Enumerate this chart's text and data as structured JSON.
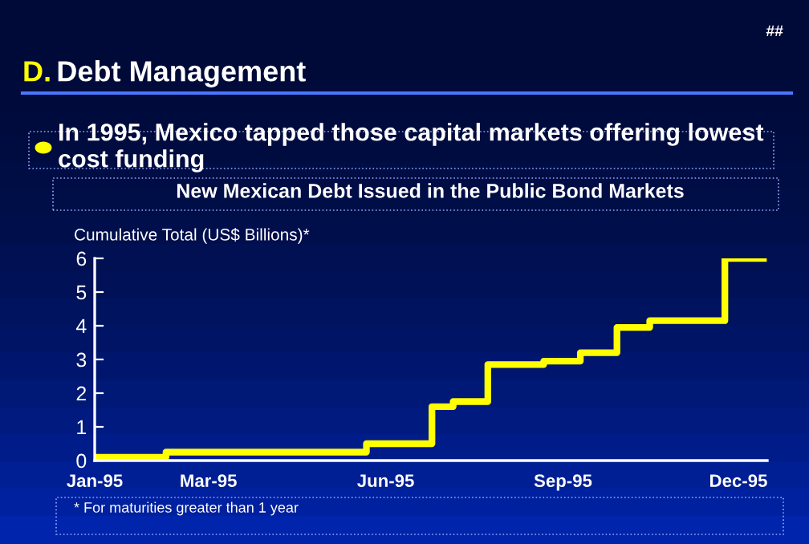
{
  "chart_data": {
    "type": "step",
    "title": "New Mexican Debt Issued in the Public Bond Markets",
    "ylabel": "Cumulative Total (US$ Billions)*",
    "annotations": [
      "##",
      "D.",
      "Debt Management",
      "In 1995, Mexico tapped those capital markets offering lowest cost funding",
      "* For maturities greater than 1 year"
    ],
    "x": [
      "1995-01-01",
      "1995-02-07",
      "1995-05-22",
      "1995-06-25",
      "1995-07-06",
      "1995-07-24",
      "1995-08-22",
      "1995-09-10",
      "1995-09-29",
      "1995-10-16",
      "1995-11-24",
      "1995-12-14"
    ],
    "series": [
      {
        "color": "#ffff00",
        "values": [
          0.1,
          0.25,
          0.5,
          1.6,
          1.75,
          2.85,
          2.95,
          3.2,
          3.95,
          4.15,
          6,
          6
        ]
      }
    ],
    "xlim": [
      "1995-01-01",
      "1995-12-16"
    ],
    "xticks": [
      {
        "value": "1995-01-01",
        "label": "Jan-95"
      },
      {
        "value": "1995-03-01",
        "label": "Mar-95"
      },
      {
        "value": "1995-06-01",
        "label": "Jun-95"
      },
      {
        "value": "1995-09-01",
        "label": "Sep-95"
      },
      {
        "value": "1995-12-01",
        "label": "Dec-95"
      }
    ],
    "ylim": [
      0,
      6
    ],
    "yticks": [
      0,
      1,
      2,
      3,
      4,
      5,
      6
    ],
    "grid": false,
    "legend": false,
    "marker": "none",
    "line_style": "solid"
  }
}
